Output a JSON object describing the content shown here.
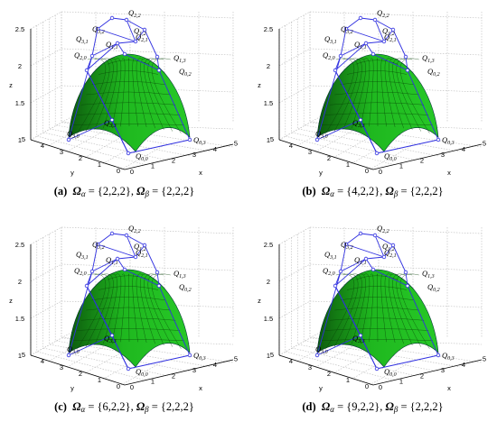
{
  "figure": {
    "axis_labels": {
      "x": "x",
      "y": "y",
      "z": "z"
    },
    "z_ticks": [
      "1",
      "1.5",
      "2",
      "2.5"
    ],
    "x_ticks": [
      "0",
      "1",
      "2",
      "3",
      "4",
      "5"
    ],
    "y_ticks": [
      "0",
      "1",
      "2",
      "3",
      "4",
      "5"
    ],
    "control_point_labels": [
      "Q1,2",
      "Q2,2",
      "Q2,1",
      "Q1,1",
      "Q3,2",
      "Q3,1",
      "Q2,0",
      "Q3,0",
      "Q1,3",
      "Q0,2",
      "Q3,3",
      "Q0,0",
      "Q0,3"
    ],
    "colors": {
      "surface": "#1fb81f",
      "surface_dark": "#0d5a0d",
      "net": "#3030e0",
      "grid": "#bbbbbb"
    }
  },
  "panels": [
    {
      "id": "a",
      "tag": "(a)",
      "alpha_sym": "Ω",
      "alpha_sub": "α",
      "alpha_value": "= {2,2,2}",
      "beta_sym": "Ω",
      "beta_sub": "β",
      "beta_value": "= {2,2,2}",
      "sep": ","
    },
    {
      "id": "b",
      "tag": "(b)",
      "alpha_sym": "Ω",
      "alpha_sub": "α",
      "alpha_value": "= {4,2,2}",
      "beta_sym": "Ω",
      "beta_sub": "β",
      "beta_value": "= {2,2,2}",
      "sep": ","
    },
    {
      "id": "c",
      "tag": "(c)",
      "alpha_sym": "Ω",
      "alpha_sub": "α",
      "alpha_value": "= {6,2,2}",
      "beta_sym": "Ω",
      "beta_sub": "β",
      "beta_value": "= {2,2,2}",
      "sep": ","
    },
    {
      "id": "d",
      "tag": "(d)",
      "alpha_sym": "Ω",
      "alpha_sub": "α",
      "alpha_value": "= {9,2,2}",
      "beta_sym": "Ω",
      "beta_sub": "β",
      "beta_value": "= {2,2,2}",
      "sep": ","
    }
  ]
}
